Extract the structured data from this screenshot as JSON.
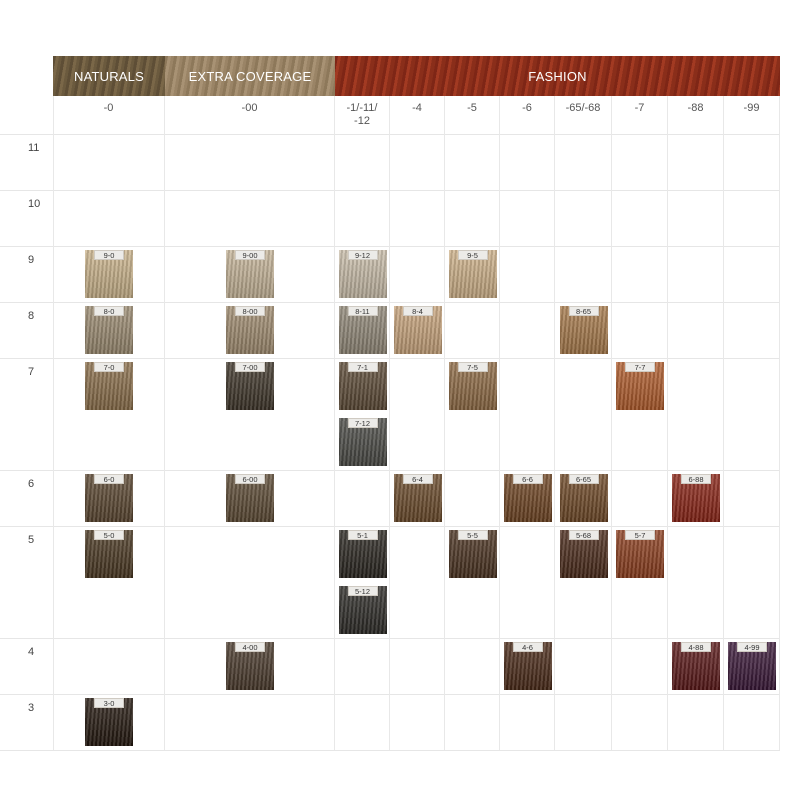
{
  "groups": [
    {
      "label": "NATURALS",
      "columns": [
        {
          "label": "-0"
        }
      ]
    },
    {
      "label": "EXTRA COVERAGE",
      "columns": [
        {
          "label": "-00"
        }
      ]
    },
    {
      "label": "FASHION",
      "columns": [
        {
          "label": "-1/-11/-12"
        },
        {
          "label": "-4"
        },
        {
          "label": "-5"
        },
        {
          "label": "-6"
        },
        {
          "label": "-65/-68"
        },
        {
          "label": "-7"
        },
        {
          "label": "-88"
        },
        {
          "label": "-99"
        }
      ]
    }
  ],
  "rows": [
    {
      "label": "11",
      "cells": [
        [],
        [],
        [],
        [],
        [],
        [],
        [],
        [],
        [],
        []
      ]
    },
    {
      "label": "10",
      "cells": [
        [],
        [],
        [],
        [],
        [],
        [],
        [],
        [],
        [],
        []
      ]
    },
    {
      "label": "9",
      "cells": [
        [
          {
            "label": "9-0",
            "color": "#c9b28a"
          }
        ],
        [
          {
            "label": "9-00",
            "color": "#c4b397"
          }
        ],
        [
          {
            "label": "9-12",
            "color": "#c8bca8"
          }
        ],
        [],
        [
          {
            "label": "9-5",
            "color": "#cdb088"
          }
        ],
        [],
        [],
        [],
        [],
        []
      ]
    },
    {
      "label": "8",
      "cells": [
        [
          {
            "label": "8-0",
            "color": "#9a8a70"
          }
        ],
        [
          {
            "label": "8-00",
            "color": "#9f8b6f"
          }
        ],
        [
          {
            "label": "8-11",
            "color": "#908777"
          }
        ],
        [
          {
            "label": "8-4",
            "color": "#c7a37b"
          }
        ],
        [],
        [],
        [
          {
            "label": "8-65",
            "color": "#a6794a"
          }
        ],
        [],
        [],
        []
      ]
    },
    {
      "label": "7",
      "cells": [
        [
          {
            "label": "7-0",
            "color": "#8a6e4a"
          }
        ],
        [
          {
            "label": "7-00",
            "color": "#3e3529"
          }
        ],
        [
          {
            "label": "7-1",
            "color": "#5c4a36"
          },
          {
            "label": "7-12",
            "color": "#4a4a45"
          }
        ],
        [],
        [
          {
            "label": "7-5",
            "color": "#8e6a44"
          }
        ],
        [],
        [],
        [
          {
            "label": "7-7",
            "color": "#b05c2c"
          }
        ],
        [],
        []
      ]
    },
    {
      "label": "6",
      "cells": [
        [
          {
            "label": "6-0",
            "color": "#5a4630"
          }
        ],
        [
          {
            "label": "6-00",
            "color": "#5c4a34"
          }
        ],
        [],
        [
          {
            "label": "6-4",
            "color": "#6a4a2a"
          }
        ],
        [],
        [
          {
            "label": "6-6",
            "color": "#6e4422"
          }
        ],
        [
          {
            "label": "6-65",
            "color": "#6e4826"
          }
        ],
        [],
        [
          {
            "label": "6-88",
            "color": "#8a2416"
          }
        ],
        []
      ]
    },
    {
      "label": "5",
      "cells": [
        [
          {
            "label": "5-0",
            "color": "#4a3822"
          }
        ],
        [],
        [
          {
            "label": "5-1",
            "color": "#2a2620"
          },
          {
            "label": "5-12",
            "color": "#2d2b27"
          }
        ],
        [],
        [
          {
            "label": "5-5",
            "color": "#4a3220"
          }
        ],
        [],
        [
          {
            "label": "5-68",
            "color": "#4a2a1a"
          }
        ],
        [
          {
            "label": "5-7",
            "color": "#8c3e1e"
          }
        ],
        [],
        []
      ]
    },
    {
      "label": "4",
      "cells": [
        [],
        [
          {
            "label": "4-00",
            "color": "#4a3a2c"
          }
        ],
        [],
        [],
        [],
        [
          {
            "label": "4-6",
            "color": "#4a2a18"
          }
        ],
        [],
        [],
        [
          {
            "label": "4-88",
            "color": "#5a1818"
          }
        ],
        [
          {
            "label": "4-99",
            "color": "#3a1838"
          }
        ]
      ]
    },
    {
      "label": "3",
      "cells": [
        [
          {
            "label": "3-0",
            "color": "#24180f"
          }
        ],
        [],
        [],
        [],
        [],
        [],
        [],
        [],
        [],
        []
      ]
    }
  ]
}
